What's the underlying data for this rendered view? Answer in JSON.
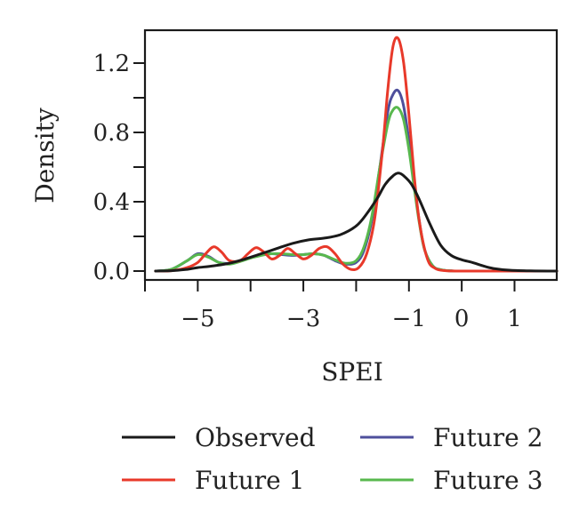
{
  "chart_data": {
    "type": "line",
    "title": "",
    "xlabel": "SPEI",
    "ylabel": "Density",
    "xlim": [
      -6.0,
      1.8
    ],
    "ylim": [
      0.0,
      1.4
    ],
    "x_ticks": [
      -6,
      -5,
      -4,
      -3,
      -2,
      -1,
      0,
      1
    ],
    "x_tick_labels": [
      "",
      "−5",
      "",
      "−3",
      "",
      "−1",
      "0",
      "1"
    ],
    "y_ticks": [
      0.0,
      0.2,
      0.4,
      0.6,
      0.8,
      1.0,
      1.2
    ],
    "y_tick_labels": [
      "0.0",
      "",
      "0.4",
      "",
      "0.8",
      "",
      "1.2"
    ],
    "grid": false,
    "legend_position": "bottom",
    "series": [
      {
        "name": "Observed",
        "color": "#1a1a1a",
        "x": [
          -5.8,
          -5.5,
          -5.2,
          -5.0,
          -4.7,
          -4.4,
          -4.1,
          -3.8,
          -3.5,
          -3.2,
          -2.9,
          -2.6,
          -2.3,
          -2.0,
          -1.8,
          -1.6,
          -1.45,
          -1.3,
          -1.2,
          -1.1,
          -0.95,
          -0.8,
          -0.6,
          -0.4,
          -0.2,
          0.0,
          0.2,
          0.4,
          0.6,
          0.9,
          1.3,
          1.8
        ],
        "values": [
          0.0,
          0.002,
          0.01,
          0.02,
          0.03,
          0.045,
          0.07,
          0.1,
          0.13,
          0.16,
          0.18,
          0.19,
          0.21,
          0.26,
          0.33,
          0.42,
          0.5,
          0.55,
          0.565,
          0.55,
          0.5,
          0.41,
          0.27,
          0.15,
          0.09,
          0.065,
          0.05,
          0.03,
          0.015,
          0.005,
          0.001,
          0.0
        ]
      },
      {
        "name": "Future 1",
        "color": "#e8392a",
        "x": [
          -5.8,
          -5.5,
          -5.2,
          -5.0,
          -4.85,
          -4.7,
          -4.55,
          -4.4,
          -4.2,
          -4.05,
          -3.9,
          -3.75,
          -3.6,
          -3.45,
          -3.3,
          -3.15,
          -3.0,
          -2.85,
          -2.7,
          -2.55,
          -2.4,
          -2.25,
          -2.1,
          -1.95,
          -1.8,
          -1.65,
          -1.5,
          -1.4,
          -1.3,
          -1.2,
          -1.1,
          -1.0,
          -0.9,
          -0.8,
          -0.65,
          -0.5,
          -0.3,
          0.0,
          0.5,
          1.0,
          1.8
        ],
        "values": [
          0.0,
          0.002,
          0.02,
          0.05,
          0.1,
          0.14,
          0.11,
          0.06,
          0.06,
          0.1,
          0.135,
          0.11,
          0.07,
          0.09,
          0.13,
          0.1,
          0.07,
          0.09,
          0.13,
          0.14,
          0.1,
          0.04,
          0.01,
          0.02,
          0.1,
          0.3,
          0.7,
          1.05,
          1.3,
          1.34,
          1.2,
          0.9,
          0.55,
          0.28,
          0.07,
          0.015,
          0.002,
          0.0,
          0.0,
          0.0,
          0.0
        ]
      },
      {
        "name": "Future 2",
        "color": "#4e4f9c",
        "x": [
          -5.8,
          -5.5,
          -5.2,
          -5.0,
          -4.8,
          -4.6,
          -4.4,
          -4.2,
          -4.0,
          -3.8,
          -3.6,
          -3.4,
          -3.2,
          -3.0,
          -2.8,
          -2.6,
          -2.4,
          -2.2,
          -2.0,
          -1.85,
          -1.7,
          -1.55,
          -1.4,
          -1.3,
          -1.2,
          -1.1,
          -1.0,
          -0.9,
          -0.8,
          -0.7,
          -0.55,
          -0.4,
          -0.2,
          0.0,
          0.5,
          1.0,
          1.8
        ],
        "values": [
          0.0,
          0.01,
          0.06,
          0.1,
          0.085,
          0.05,
          0.045,
          0.06,
          0.08,
          0.095,
          0.1,
          0.095,
          0.09,
          0.095,
          0.1,
          0.09,
          0.06,
          0.04,
          0.05,
          0.12,
          0.3,
          0.6,
          0.92,
          1.02,
          1.04,
          0.95,
          0.75,
          0.5,
          0.28,
          0.12,
          0.03,
          0.008,
          0.001,
          0.0,
          0.0,
          0.0,
          0.0
        ]
      },
      {
        "name": "Future 3",
        "color": "#58b84e",
        "x": [
          -5.8,
          -5.5,
          -5.2,
          -5.0,
          -4.8,
          -4.6,
          -4.4,
          -4.2,
          -4.0,
          -3.8,
          -3.6,
          -3.4,
          -3.2,
          -3.0,
          -2.8,
          -2.6,
          -2.4,
          -2.2,
          -2.0,
          -1.85,
          -1.7,
          -1.55,
          -1.4,
          -1.3,
          -1.2,
          -1.1,
          -1.0,
          -0.9,
          -0.8,
          -0.7,
          -0.55,
          -0.4,
          -0.2,
          0.0,
          0.5,
          1.0,
          1.8
        ],
        "values": [
          0.0,
          0.01,
          0.06,
          0.095,
          0.08,
          0.05,
          0.04,
          0.055,
          0.075,
          0.09,
          0.1,
          0.1,
          0.095,
          0.095,
          0.1,
          0.09,
          0.065,
          0.045,
          0.06,
          0.14,
          0.32,
          0.6,
          0.85,
          0.93,
          0.94,
          0.87,
          0.7,
          0.48,
          0.27,
          0.12,
          0.03,
          0.008,
          0.001,
          0.0,
          0.0,
          0.0,
          0.0
        ]
      }
    ]
  }
}
